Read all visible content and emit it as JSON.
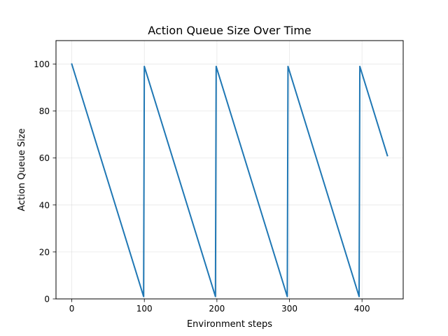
{
  "chart_data": {
    "type": "line",
    "title": "Action Queue Size Over Time",
    "xlabel": "Environment steps",
    "ylabel": "Action Queue Size",
    "xlim": [
      -21.75,
      456.75
    ],
    "ylim": [
      0,
      110
    ],
    "xticks": [
      0,
      100,
      200,
      300,
      400
    ],
    "yticks": [
      0,
      20,
      40,
      60,
      80,
      100
    ],
    "grid": true,
    "series": [
      {
        "color": "#1f77b4",
        "x": [
          0,
          99,
          100,
          198,
          199,
          297,
          298,
          396,
          397,
          435
        ],
        "y": [
          100,
          1,
          99,
          1,
          99,
          1,
          99,
          1,
          99,
          61
        ]
      }
    ]
  }
}
